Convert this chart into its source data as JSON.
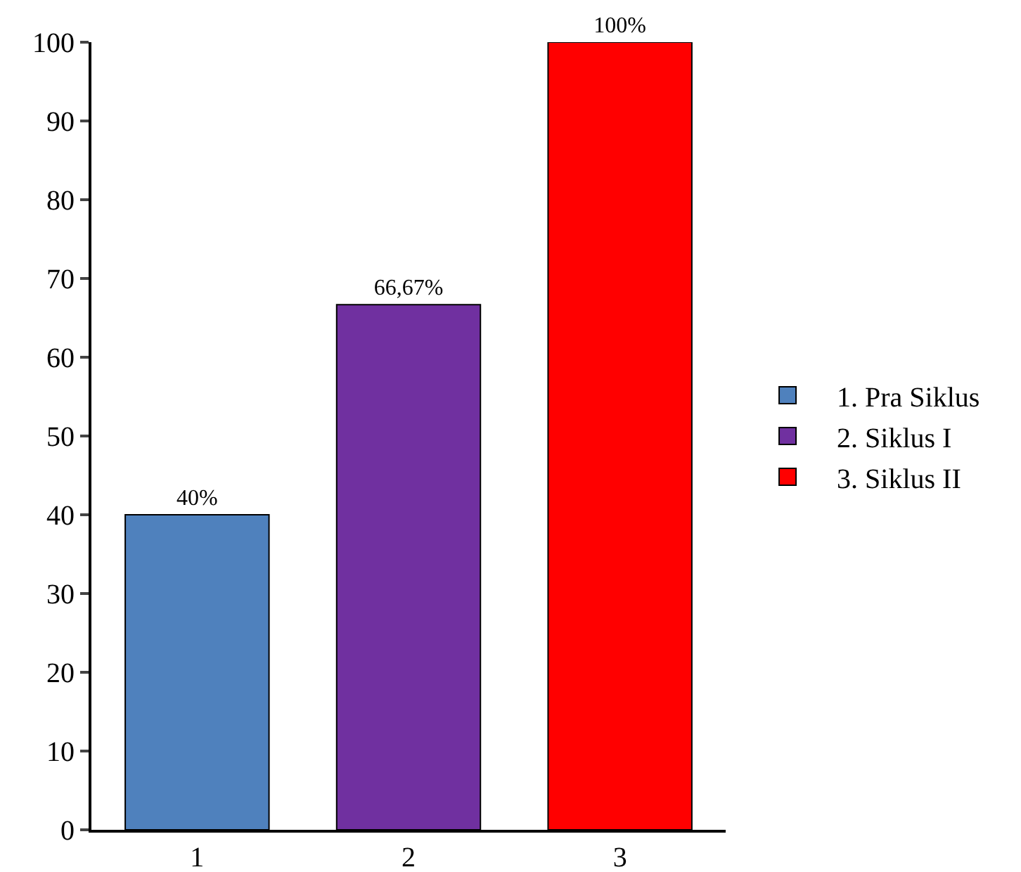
{
  "chart_data": {
    "type": "bar",
    "categories": [
      "1",
      "2",
      "3"
    ],
    "series": [
      {
        "name": "1. Pra Siklus",
        "color": "#4f81bd",
        "values": [
          40,
          null,
          null
        ],
        "value_labels": [
          "40%",
          null,
          null
        ]
      },
      {
        "name": "2. Siklus I",
        "color": "#7030a0",
        "values": [
          null,
          66.67,
          null
        ],
        "value_labels": [
          null,
          "66,67%",
          null
        ]
      },
      {
        "name": "3. Siklus II",
        "color": "#ff0000",
        "values": [
          null,
          null,
          100
        ],
        "value_labels": [
          null,
          null,
          "100%"
        ]
      }
    ],
    "ylim": [
      0,
      100
    ],
    "yticks": [
      0,
      10,
      20,
      30,
      40,
      50,
      60,
      70,
      80,
      90,
      100
    ],
    "grid": false,
    "legend": "right"
  }
}
